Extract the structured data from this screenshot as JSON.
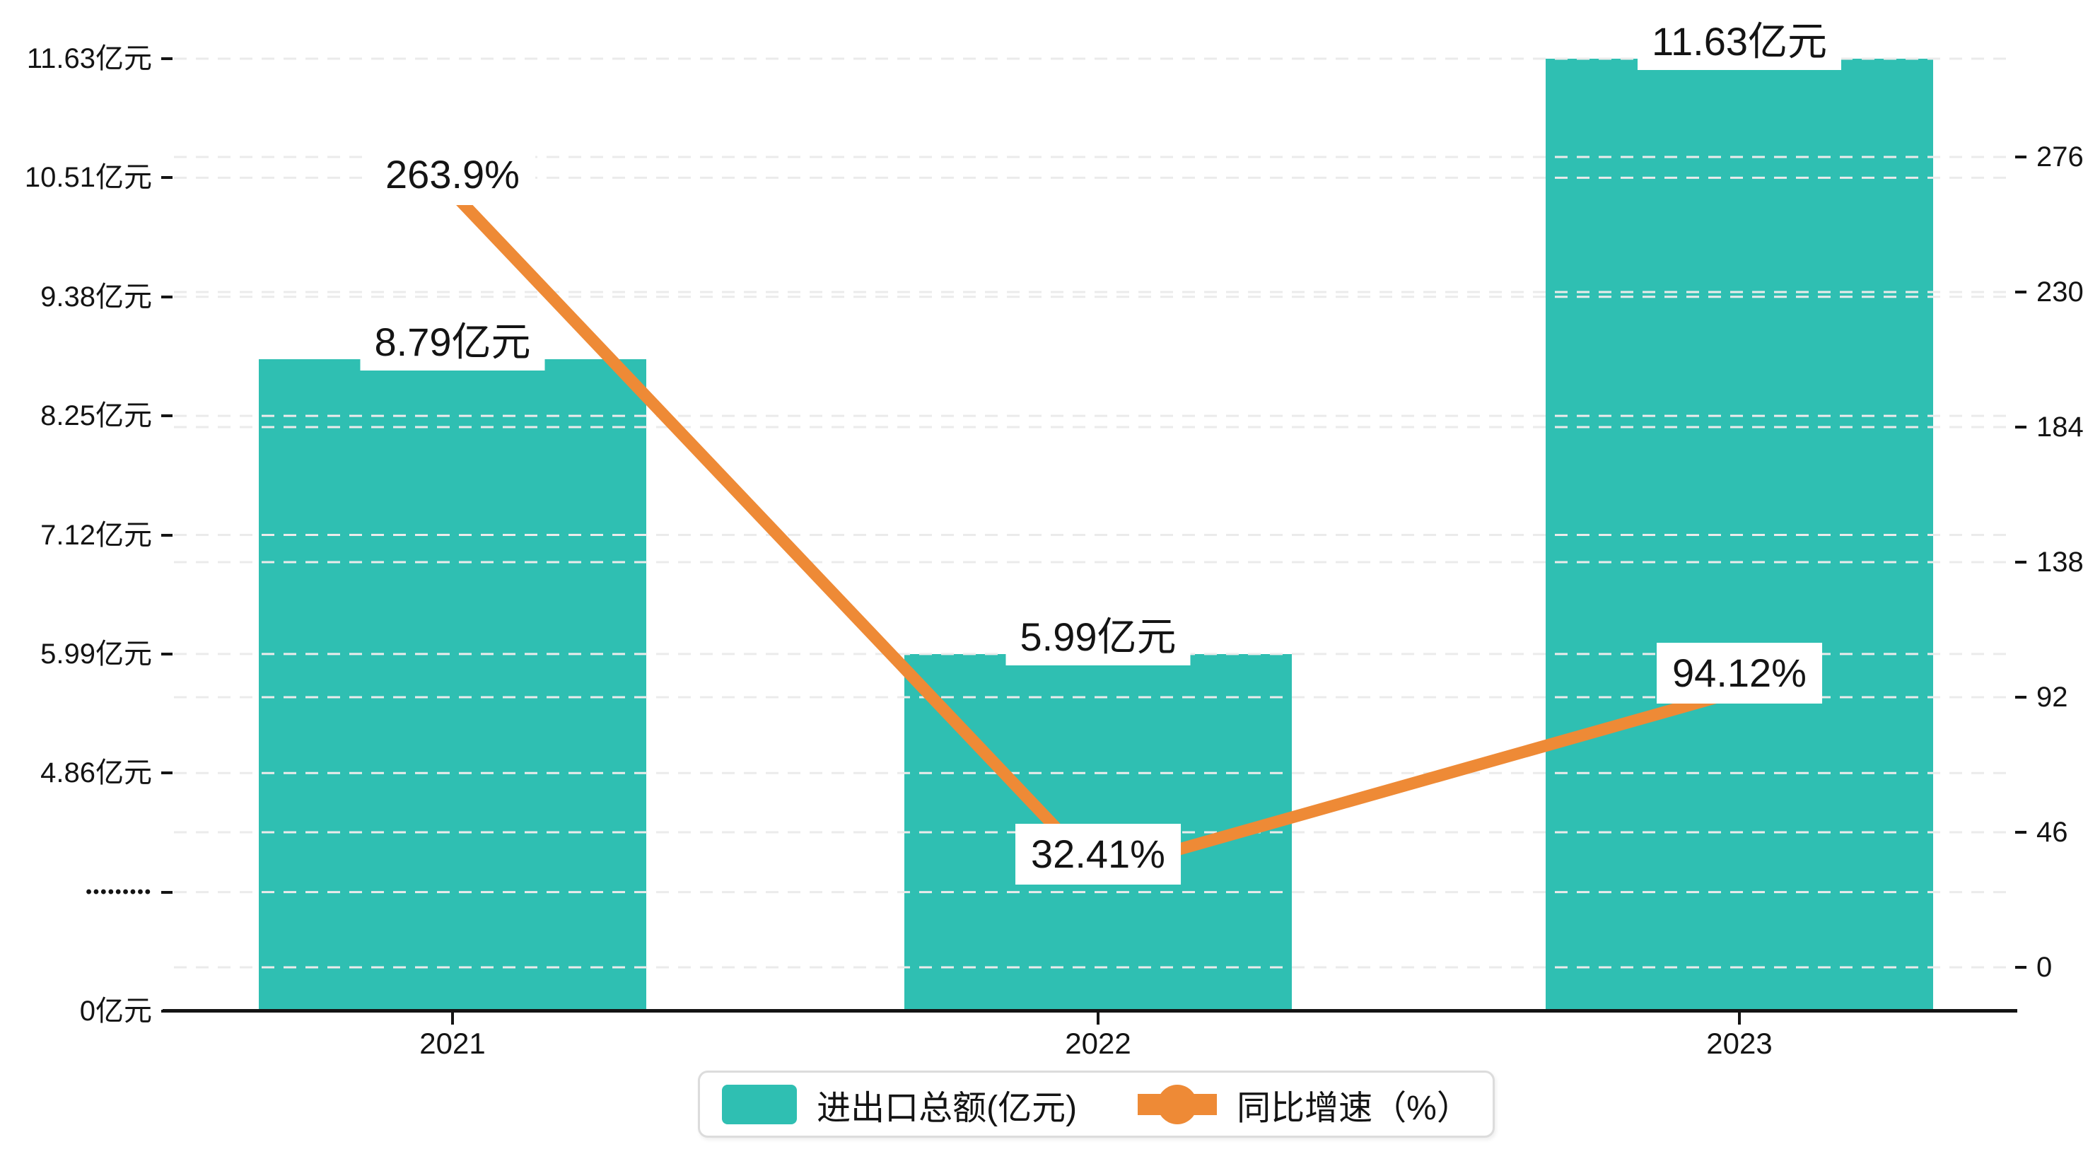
{
  "chart_data": {
    "type": "bar",
    "subtype": "bar-line-combo",
    "title": "",
    "background": "#FFFFFF",
    "grid": true,
    "categories": [
      "2021",
      "2022",
      "2023"
    ],
    "series": [
      {
        "name": "进出口总额(亿元)",
        "type": "bar",
        "axis": "left",
        "color": "#2FBFB2",
        "values": [
          8.79,
          5.99,
          11.63
        ],
        "data_labels": [
          "8.79亿元",
          "5.99亿元",
          "11.63亿元"
        ]
      },
      {
        "name": "同比增速（%）",
        "type": "line",
        "axis": "right",
        "color": "#EE8A36",
        "values": [
          263.9,
          32.41,
          94.12
        ],
        "data_labels": [
          "263.9%",
          "32.41%",
          "94.12%"
        ]
      }
    ],
    "left_axis": {
      "axis_break": true,
      "ticks": [
        {
          "value": 0,
          "label": "0亿元"
        },
        {
          "value": null,
          "label": "•••••••••"
        },
        {
          "value": 4.86,
          "label": "4.86亿元"
        },
        {
          "value": 5.99,
          "label": "5.99亿元"
        },
        {
          "value": 7.12,
          "label": "7.12亿元"
        },
        {
          "value": 8.25,
          "label": "8.25亿元"
        },
        {
          "value": 9.38,
          "label": "9.38亿元"
        },
        {
          "value": 10.51,
          "label": "10.51亿元"
        },
        {
          "value": 11.63,
          "label": "11.63亿元"
        }
      ]
    },
    "right_axis": {
      "ticks": [
        0,
        46,
        92,
        138,
        184,
        230,
        276
      ]
    },
    "legend": {
      "position": "bottom",
      "items": [
        {
          "label": "进出口总额(亿元)",
          "marker": "bar-swatch",
          "color": "#2FBFB2"
        },
        {
          "label": "同比增速（%）",
          "marker": "line-dot",
          "color": "#EE8A36"
        }
      ]
    },
    "colors": {
      "bar": "#2FBFB2",
      "line": "#EE8A36",
      "gridline": "#EBEBEB",
      "axis": "#141414",
      "text": "#141414"
    }
  }
}
